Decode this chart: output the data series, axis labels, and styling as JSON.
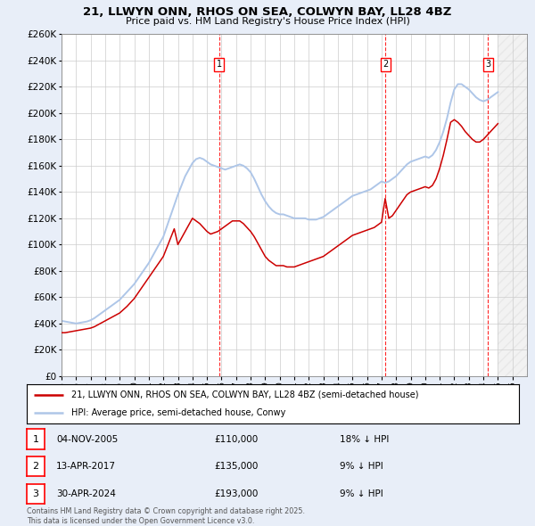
{
  "title": "21, LLWYN ONN, RHOS ON SEA, COLWYN BAY, LL28 4BZ",
  "subtitle": "Price paid vs. HM Land Registry's House Price Index (HPI)",
  "hpi_color": "#aec6e8",
  "price_color": "#cc0000",
  "background_color": "#e8eef8",
  "plot_bg": "#ffffff",
  "ylim": [
    0,
    260000
  ],
  "yticks": [
    0,
    20000,
    40000,
    60000,
    80000,
    100000,
    120000,
    140000,
    160000,
    180000,
    200000,
    220000,
    240000,
    260000
  ],
  "xmin": 1995.0,
  "xmax": 2027.0,
  "sales": [
    {
      "num": 1,
      "date": "04-NOV-2005",
      "price": 110000,
      "pct": "18% ↓ HPI",
      "x": 2005.84
    },
    {
      "num": 2,
      "date": "13-APR-2017",
      "price": 135000,
      "pct": "9% ↓ HPI",
      "x": 2017.28
    },
    {
      "num": 3,
      "date": "30-APR-2024",
      "price": 193000,
      "pct": "9% ↓ HPI",
      "x": 2024.33
    }
  ],
  "legend_line1": "21, LLWYN ONN, RHOS ON SEA, COLWYN BAY, LL28 4BZ (semi-detached house)",
  "legend_line2": "HPI: Average price, semi-detached house, Conwy",
  "footnote": "Contains HM Land Registry data © Crown copyright and database right 2025.\nThis data is licensed under the Open Government Licence v3.0.",
  "hpi_data_x": [
    1995.0,
    1995.25,
    1995.5,
    1995.75,
    1996.0,
    1996.25,
    1996.5,
    1996.75,
    1997.0,
    1997.25,
    1997.5,
    1997.75,
    1998.0,
    1998.25,
    1998.5,
    1998.75,
    1999.0,
    1999.25,
    1999.5,
    1999.75,
    2000.0,
    2000.25,
    2000.5,
    2000.75,
    2001.0,
    2001.25,
    2001.5,
    2001.75,
    2002.0,
    2002.25,
    2002.5,
    2002.75,
    2003.0,
    2003.25,
    2003.5,
    2003.75,
    2004.0,
    2004.25,
    2004.5,
    2004.75,
    2005.0,
    2005.25,
    2005.5,
    2005.75,
    2006.0,
    2006.25,
    2006.5,
    2006.75,
    2007.0,
    2007.25,
    2007.5,
    2007.75,
    2008.0,
    2008.25,
    2008.5,
    2008.75,
    2009.0,
    2009.25,
    2009.5,
    2009.75,
    2010.0,
    2010.25,
    2010.5,
    2010.75,
    2011.0,
    2011.25,
    2011.5,
    2011.75,
    2012.0,
    2012.25,
    2012.5,
    2012.75,
    2013.0,
    2013.25,
    2013.5,
    2013.75,
    2014.0,
    2014.25,
    2014.5,
    2014.75,
    2015.0,
    2015.25,
    2015.5,
    2015.75,
    2016.0,
    2016.25,
    2016.5,
    2016.75,
    2017.0,
    2017.25,
    2017.5,
    2017.75,
    2018.0,
    2018.25,
    2018.5,
    2018.75,
    2019.0,
    2019.25,
    2019.5,
    2019.75,
    2020.0,
    2020.25,
    2020.5,
    2020.75,
    2021.0,
    2021.25,
    2021.5,
    2021.75,
    2022.0,
    2022.25,
    2022.5,
    2022.75,
    2023.0,
    2023.25,
    2023.5,
    2023.75,
    2024.0,
    2024.25,
    2024.5,
    2024.75,
    2025.0
  ],
  "hpi_data_y": [
    42000,
    41500,
    41000,
    40500,
    40000,
    40500,
    41000,
    41500,
    42500,
    44000,
    46000,
    48000,
    50000,
    52000,
    54000,
    56000,
    58000,
    61000,
    64000,
    67000,
    70000,
    74000,
    78000,
    82000,
    86000,
    91000,
    96000,
    101000,
    106000,
    114000,
    122000,
    130000,
    138000,
    145000,
    152000,
    157000,
    162000,
    165000,
    166000,
    165000,
    163000,
    161000,
    160000,
    159000,
    158000,
    157000,
    158000,
    159000,
    160000,
    161000,
    160000,
    158000,
    155000,
    150000,
    144000,
    138000,
    133000,
    129000,
    126000,
    124000,
    123000,
    123000,
    122000,
    121000,
    120000,
    120000,
    120000,
    120000,
    119000,
    119000,
    119000,
    120000,
    121000,
    123000,
    125000,
    127000,
    129000,
    131000,
    133000,
    135000,
    137000,
    138000,
    139000,
    140000,
    141000,
    142000,
    144000,
    146000,
    148000,
    147000,
    148000,
    150000,
    152000,
    155000,
    158000,
    161000,
    163000,
    164000,
    165000,
    166000,
    167000,
    166000,
    168000,
    172000,
    178000,
    186000,
    196000,
    208000,
    218000,
    222000,
    222000,
    220000,
    218000,
    215000,
    212000,
    210000,
    209000,
    210000,
    212000,
    214000,
    216000
  ],
  "price_data_x": [
    1995.0,
    1995.25,
    1995.5,
    1995.75,
    1996.0,
    1996.25,
    1996.5,
    1996.75,
    1997.0,
    1997.25,
    1997.5,
    1997.75,
    1998.0,
    1998.25,
    1998.5,
    1998.75,
    1999.0,
    1999.25,
    1999.5,
    1999.75,
    2000.0,
    2000.25,
    2000.5,
    2000.75,
    2001.0,
    2001.25,
    2001.5,
    2001.75,
    2002.0,
    2002.25,
    2002.5,
    2002.75,
    2003.0,
    2003.25,
    2003.5,
    2003.75,
    2004.0,
    2004.25,
    2004.5,
    2004.75,
    2005.0,
    2005.25,
    2005.5,
    2005.75,
    2006.0,
    2006.25,
    2006.5,
    2006.75,
    2007.0,
    2007.25,
    2007.5,
    2007.75,
    2008.0,
    2008.25,
    2008.5,
    2008.75,
    2009.0,
    2009.25,
    2009.5,
    2009.75,
    2010.0,
    2010.25,
    2010.5,
    2010.75,
    2011.0,
    2011.25,
    2011.5,
    2011.75,
    2012.0,
    2012.25,
    2012.5,
    2012.75,
    2013.0,
    2013.25,
    2013.5,
    2013.75,
    2014.0,
    2014.25,
    2014.5,
    2014.75,
    2015.0,
    2015.25,
    2015.5,
    2015.75,
    2016.0,
    2016.25,
    2016.5,
    2016.75,
    2017.0,
    2017.25,
    2017.5,
    2017.75,
    2018.0,
    2018.25,
    2018.5,
    2018.75,
    2019.0,
    2019.25,
    2019.5,
    2019.75,
    2020.0,
    2020.25,
    2020.5,
    2020.75,
    2021.0,
    2021.25,
    2021.5,
    2021.75,
    2022.0,
    2022.25,
    2022.5,
    2022.75,
    2023.0,
    2023.25,
    2023.5,
    2023.75,
    2024.0,
    2024.25,
    2024.5,
    2024.75,
    2025.0
  ],
  "price_data_y": [
    33000,
    33000,
    33500,
    34000,
    34500,
    35000,
    35500,
    36000,
    36500,
    37500,
    39000,
    40500,
    42000,
    43500,
    45000,
    46500,
    48000,
    50500,
    53000,
    56000,
    59000,
    63000,
    67000,
    71000,
    75000,
    79000,
    83000,
    87000,
    91000,
    98000,
    105000,
    112000,
    100000,
    105000,
    110000,
    115000,
    120000,
    118000,
    116000,
    113000,
    110000,
    108000,
    109000,
    110000,
    112000,
    114000,
    116000,
    118000,
    118000,
    118000,
    116000,
    113000,
    110000,
    106000,
    101000,
    96000,
    91000,
    88000,
    86000,
    84000,
    84000,
    84000,
    83000,
    83000,
    83000,
    84000,
    85000,
    86000,
    87000,
    88000,
    89000,
    90000,
    91000,
    93000,
    95000,
    97000,
    99000,
    101000,
    103000,
    105000,
    107000,
    108000,
    109000,
    110000,
    111000,
    112000,
    113000,
    115000,
    117000,
    135000,
    120000,
    122000,
    126000,
    130000,
    134000,
    138000,
    140000,
    141000,
    142000,
    143000,
    144000,
    143000,
    145000,
    150000,
    158000,
    168000,
    180000,
    193000,
    195000,
    193000,
    190000,
    186000,
    183000,
    180000,
    178000,
    178000,
    180000,
    183000,
    186000,
    189000,
    192000
  ]
}
